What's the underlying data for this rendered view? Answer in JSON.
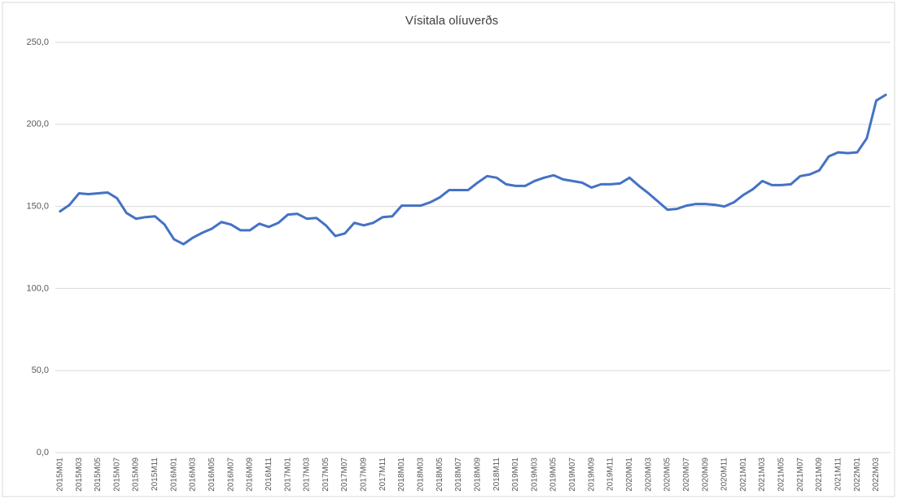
{
  "chart_data": {
    "type": "line",
    "title": "Vísitala olíuverðs",
    "categories": [
      "2015M01",
      null,
      "2015M03",
      null,
      "2015M05",
      null,
      "2015M07",
      null,
      "2015M09",
      null,
      "2015M11",
      null,
      "2016M01",
      null,
      "2016M03",
      null,
      "2016M05",
      null,
      "2016M07",
      null,
      "2016M09",
      null,
      "2016M11",
      null,
      "2017M01",
      null,
      "2017M03",
      null,
      "2017M05",
      null,
      "2017M07",
      null,
      "2017M09",
      null,
      "2017M11",
      null,
      "2018M01",
      null,
      "2018M03",
      null,
      "2018M05",
      null,
      "2018M07",
      null,
      "2018M09",
      null,
      "2018M11",
      null,
      "2019M01",
      null,
      "2019M03",
      null,
      "2019M05",
      null,
      "2019M07",
      null,
      "2019M09",
      null,
      "2019M11",
      null,
      "2020M01",
      null,
      "2020M03",
      null,
      "2020M05",
      null,
      "2020M07",
      null,
      "2020M09",
      null,
      "2020M11",
      null,
      "2021M01",
      null,
      "2021M03",
      null,
      "2021M05",
      null,
      "2021M07",
      null,
      "2021M09",
      null,
      "2021M11",
      null,
      "2022M01",
      null,
      "2022M03",
      null
    ],
    "series": [
      {
        "color": "#4472c4",
        "values": [
          147,
          151,
          158,
          157.5,
          158,
          158.5,
          155,
          146,
          142.5,
          143.5,
          144,
          139,
          130,
          127,
          131,
          134,
          136.5,
          140.5,
          139,
          135.5,
          135.5,
          139.5,
          137.5,
          140,
          145,
          145.5,
          142.5,
          143,
          138.5,
          132,
          133.5,
          140,
          138.5,
          140,
          143.5,
          144,
          150.5,
          150.5,
          150.5,
          152.5,
          155.5,
          160,
          160,
          160,
          164.5,
          168.5,
          167.5,
          163.5,
          162.5,
          162.5,
          165.5,
          167.5,
          169,
          166.5,
          165.5,
          164.5,
          161.5,
          163.5,
          163.5,
          164,
          167.5,
          162.5,
          158,
          153,
          148,
          148.5,
          150.5,
          151.5,
          151.5,
          151,
          150,
          152.5,
          157,
          160.5,
          165.5,
          163,
          163,
          163.5,
          168.5,
          169.5,
          172,
          180.5,
          183,
          182.5,
          183,
          191.5,
          214.5,
          218
        ]
      }
    ],
    "ylim": [
      0,
      250
    ],
    "yticks": [
      {
        "value": 0,
        "label": "0,0"
      },
      {
        "value": 50,
        "label": "50,0"
      },
      {
        "value": 100,
        "label": "100,0"
      },
      {
        "value": 150,
        "label": "150,0"
      },
      {
        "value": 200,
        "label": "200,0"
      },
      {
        "value": 250,
        "label": "250,0"
      }
    ],
    "grid": true
  }
}
